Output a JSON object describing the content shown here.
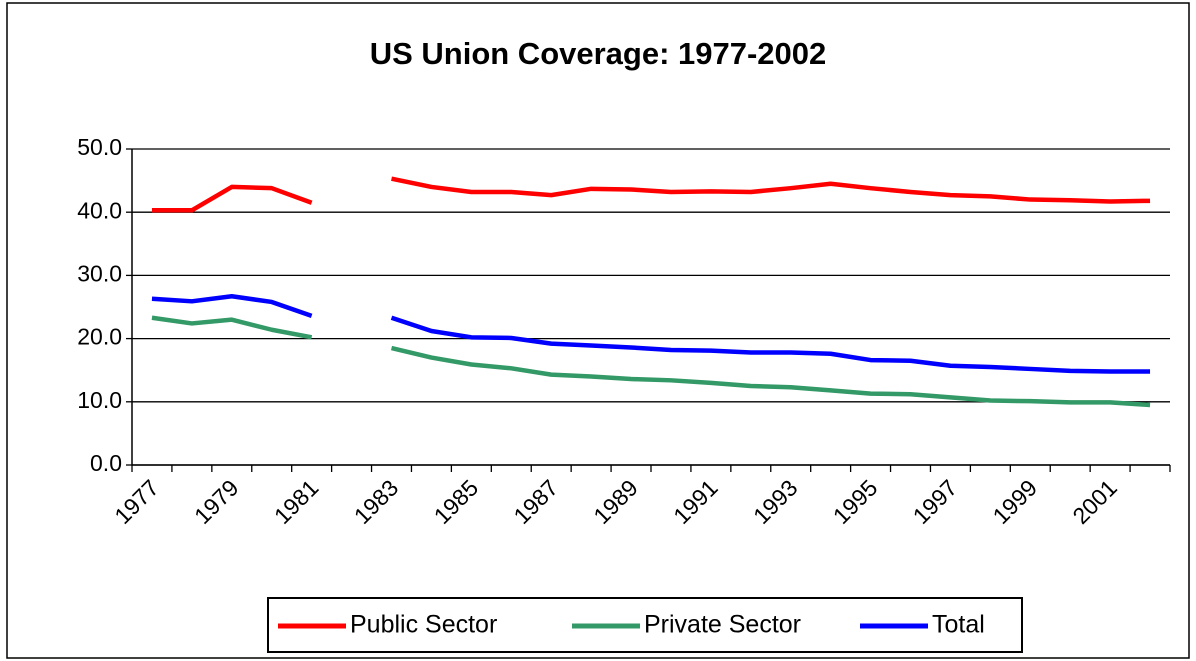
{
  "chart_data": {
    "type": "line",
    "title": "US Union Coverage: 1977-2002",
    "categories": [
      "1977",
      null,
      "1979",
      null,
      "1981",
      null,
      "1983",
      null,
      "1985",
      null,
      "1987",
      null,
      "1989",
      null,
      "1991",
      null,
      "1993",
      null,
      "1995",
      null,
      "1997",
      null,
      "1999",
      null,
      "2001",
      null
    ],
    "series": [
      {
        "name": "Public Sector",
        "color": "#ff0000",
        "values": [
          40.3,
          40.3,
          44.0,
          43.8,
          41.5,
          null,
          45.3,
          44.0,
          43.2,
          43.2,
          42.7,
          43.7,
          43.6,
          43.2,
          43.3,
          43.2,
          43.8,
          44.5,
          43.8,
          43.2,
          42.7,
          42.5,
          42.0,
          41.9,
          41.7,
          41.8
        ]
      },
      {
        "name": "Private Sector",
        "color": "#339966",
        "values": [
          23.3,
          22.4,
          23.0,
          21.4,
          20.2,
          null,
          18.5,
          17.0,
          15.9,
          15.3,
          14.3,
          14.0,
          13.6,
          13.4,
          13.0,
          12.5,
          12.3,
          11.8,
          11.3,
          11.2,
          10.7,
          10.2,
          10.1,
          9.9,
          9.9,
          9.5
        ]
      },
      {
        "name": "Total",
        "color": "#0000ff",
        "values": [
          26.3,
          25.9,
          26.7,
          25.8,
          23.6,
          null,
          23.3,
          21.2,
          20.2,
          20.1,
          19.2,
          18.9,
          18.6,
          18.2,
          18.1,
          17.8,
          17.8,
          17.6,
          16.6,
          16.5,
          15.7,
          15.5,
          15.2,
          14.9,
          14.8,
          14.8
        ]
      }
    ],
    "ylim": [
      0,
      50
    ],
    "yticks": [
      {
        "value": 0,
        "label": "0.0"
      },
      {
        "value": 10,
        "label": "10.0"
      },
      {
        "value": 20,
        "label": "20.0"
      },
      {
        "value": 30,
        "label": "30.0"
      },
      {
        "value": 40,
        "label": "40.0"
      },
      {
        "value": 50,
        "label": "50.0"
      }
    ],
    "grid": true,
    "legend": "bottom"
  }
}
